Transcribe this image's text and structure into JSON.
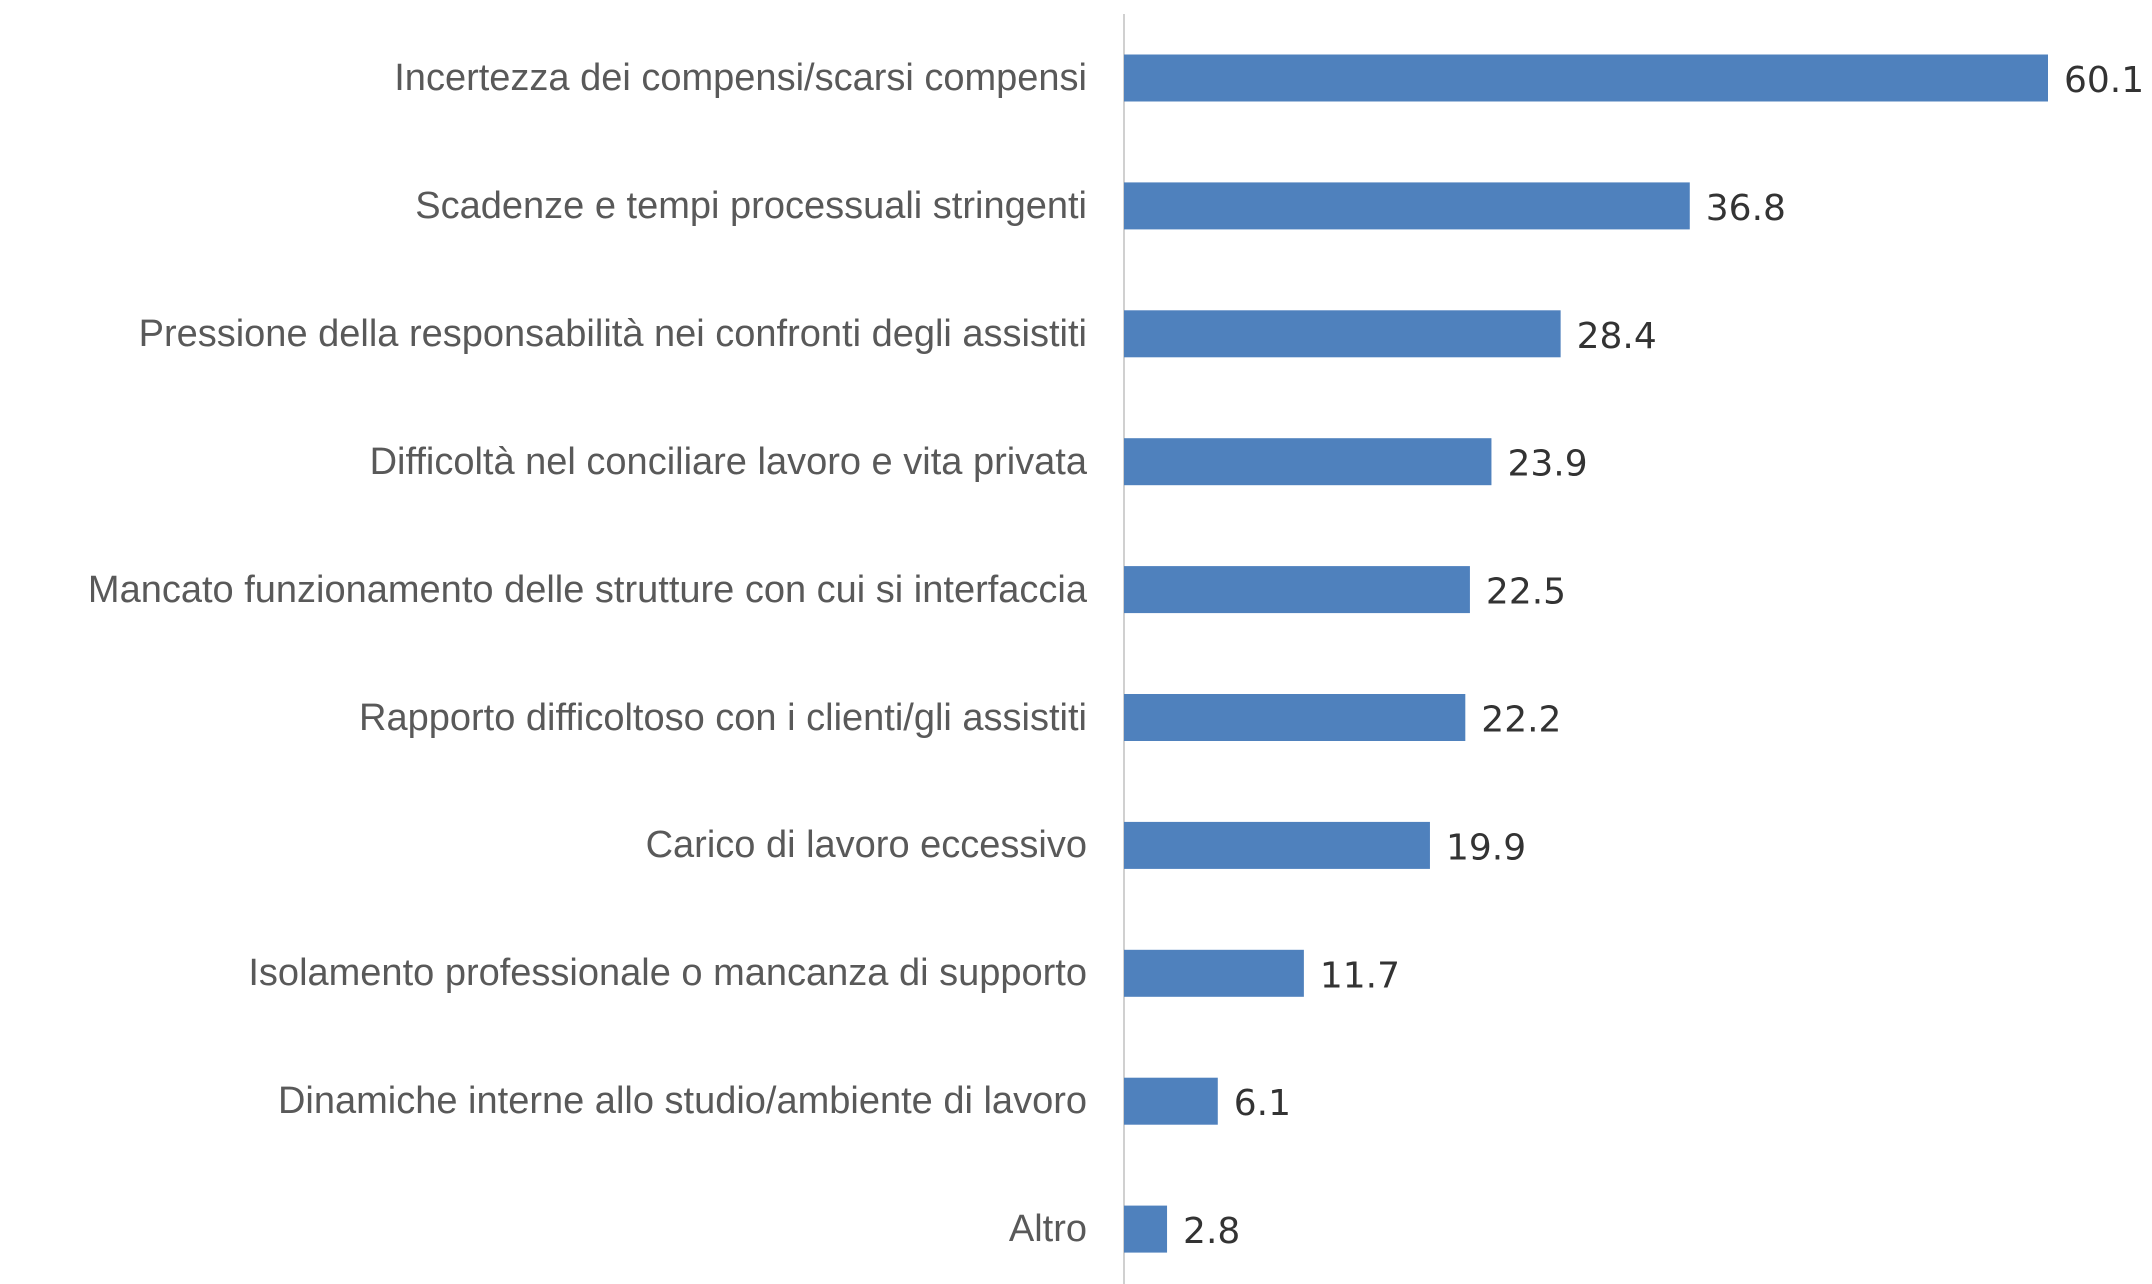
{
  "chart_data": {
    "type": "bar",
    "orientation": "horizontal",
    "color": "#4f81bd",
    "categories": [
      "Incertezza dei compensi/scarsi compensi",
      "Scadenze e tempi processuali stringenti",
      "Pressione della responsabilità nei confronti degli assistiti",
      "Difficoltà nel conciliare lavoro e vita privata",
      "Mancato funzionamento delle strutture con cui si interfaccia",
      "Rapporto difficoltoso con i clienti/gli assistiti",
      "Carico di lavoro eccessivo",
      "Isolamento professionale o mancanza di supporto",
      "Dinamiche interne allo studio/ambiente di lavoro",
      "Altro"
    ],
    "values": [
      60.1,
      36.8,
      28.4,
      23.9,
      22.5,
      22.2,
      19.9,
      11.7,
      6.1,
      2.8
    ]
  }
}
